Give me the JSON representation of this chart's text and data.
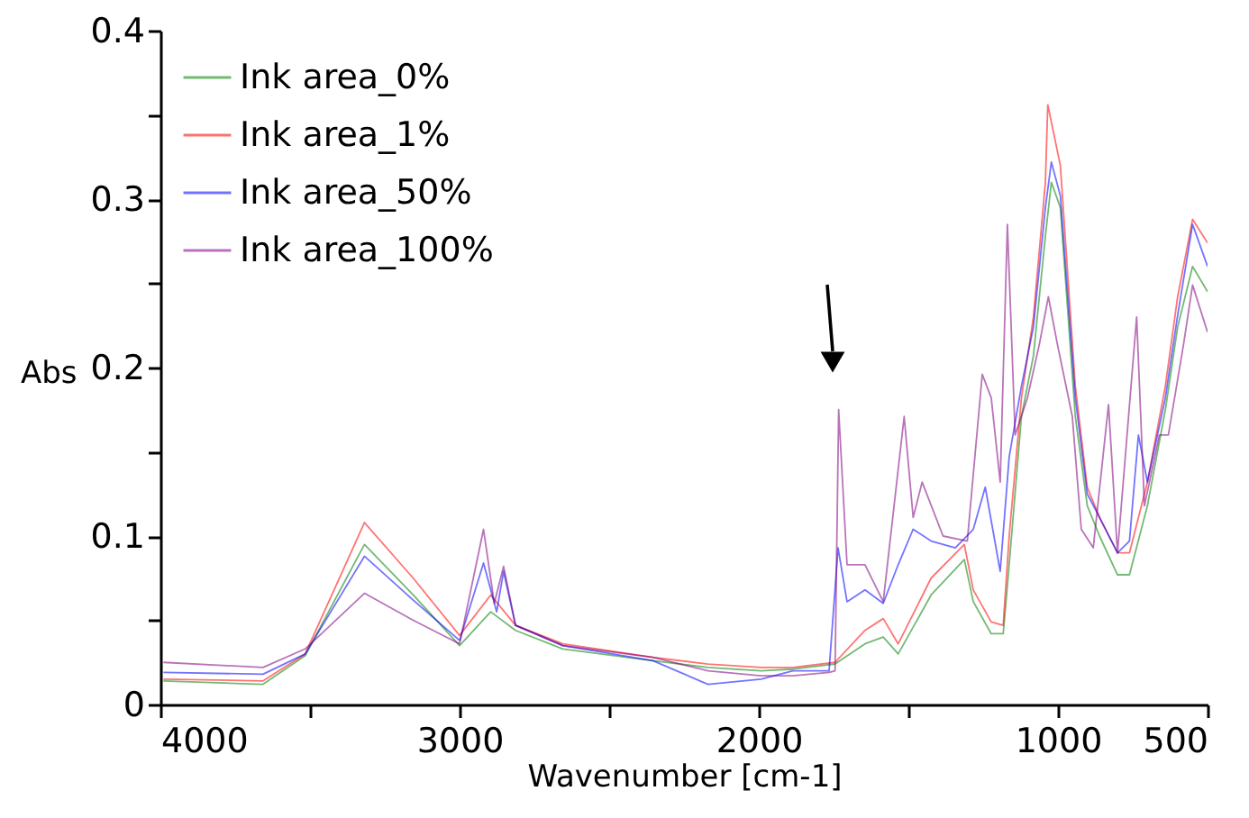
{
  "chart_data": {
    "type": "line",
    "xlabel": "Wavenumber [cm-1]",
    "ylabel": "Abs",
    "xlim": [
      4000,
      500
    ],
    "ylim": [
      0,
      0.4
    ],
    "xticks": [
      4000,
      {
        "value": 3500,
        "label": null
      },
      3000,
      {
        "value": 2500,
        "label": null
      },
      2000,
      {
        "value": 1500,
        "label": null
      },
      1000,
      500
    ],
    "yticks": [
      0,
      {
        "value": 0.05,
        "label": null
      },
      0.1,
      {
        "value": 0.15,
        "label": null
      },
      0.2,
      {
        "value": 0.25,
        "label": null
      },
      0.3,
      {
        "value": 0.35,
        "label": null
      },
      0.4
    ],
    "grid": false,
    "legend": "top left",
    "line_style": "solid",
    "marker": "none",
    "series": [
      {
        "name": "Ink area_0%",
        "color": "#008000",
        "x": [
          3990,
          3657,
          3516,
          3318,
          3155,
          3000,
          2896,
          2813,
          2655,
          2354,
          2170,
          1992,
          1886,
          1745,
          1645,
          1584,
          1534,
          1424,
          1313,
          1283,
          1223,
          1183,
          1163,
          1122,
          1082,
          1042,
          1022,
          992,
          942,
          902,
          861,
          801,
          761,
          701,
          641,
          600,
          550,
          500
        ],
        "values": [
          0.014,
          0.012,
          0.029,
          0.095,
          0.065,
          0.035,
          0.055,
          0.044,
          0.033,
          0.026,
          0.022,
          0.02,
          0.021,
          0.024,
          0.036,
          0.04,
          0.03,
          0.065,
          0.086,
          0.061,
          0.042,
          0.042,
          0.083,
          0.171,
          0.207,
          0.278,
          0.31,
          0.295,
          0.171,
          0.118,
          0.1,
          0.077,
          0.077,
          0.118,
          0.175,
          0.224,
          0.26,
          0.245
        ]
      },
      {
        "name": "Ink area_1%",
        "color": "#ff0000",
        "x": [
          3990,
          3657,
          3516,
          3318,
          3155,
          3000,
          2896,
          2813,
          2655,
          2354,
          2170,
          1992,
          1886,
          1745,
          1645,
          1584,
          1534,
          1424,
          1313,
          1283,
          1223,
          1183,
          1163,
          1122,
          1082,
          1042,
          1034,
          992,
          942,
          902,
          861,
          801,
          761,
          701,
          641,
          600,
          550,
          500
        ],
        "values": [
          0.015,
          0.014,
          0.03,
          0.108,
          0.075,
          0.041,
          0.065,
          0.047,
          0.036,
          0.028,
          0.024,
          0.022,
          0.022,
          0.025,
          0.044,
          0.051,
          0.036,
          0.075,
          0.095,
          0.068,
          0.049,
          0.047,
          0.1,
          0.182,
          0.23,
          0.31,
          0.356,
          0.32,
          0.189,
          0.129,
          0.111,
          0.09,
          0.09,
          0.132,
          0.189,
          0.242,
          0.288,
          0.274
        ]
      },
      {
        "name": "Ink area_50%",
        "color": "#0000ff",
        "x": [
          3990,
          3657,
          3516,
          3318,
          3155,
          3000,
          2920,
          2876,
          2853,
          2813,
          2655,
          2354,
          2170,
          1992,
          1886,
          1765,
          1735,
          1705,
          1645,
          1584,
          1534,
          1484,
          1424,
          1343,
          1283,
          1243,
          1193,
          1163,
          1122,
          1082,
          1042,
          1022,
          992,
          942,
          902,
          861,
          801,
          761,
          731,
          701,
          641,
          600,
          550,
          500
        ],
        "values": [
          0.019,
          0.018,
          0.03,
          0.088,
          0.062,
          0.038,
          0.084,
          0.055,
          0.079,
          0.047,
          0.035,
          0.026,
          0.012,
          0.015,
          0.02,
          0.02,
          0.093,
          0.061,
          0.068,
          0.06,
          0.083,
          0.104,
          0.097,
          0.093,
          0.104,
          0.129,
          0.079,
          0.147,
          0.189,
          0.224,
          0.295,
          0.322,
          0.302,
          0.182,
          0.125,
          0.111,
          0.09,
          0.097,
          0.16,
          0.132,
          0.182,
          0.231,
          0.285,
          0.26
        ]
      },
      {
        "name": "Ink area_100%",
        "color": "#800080",
        "x": [
          3990,
          3657,
          3516,
          3318,
          3155,
          3000,
          2920,
          2884,
          2853,
          2813,
          2655,
          2354,
          2170,
          1992,
          1886,
          1765,
          1745,
          1733,
          1705,
          1645,
          1584,
          1514,
          1484,
          1454,
          1384,
          1303,
          1253,
          1223,
          1193,
          1169,
          1143,
          1102,
          1062,
          1032,
          1002,
          952,
          922,
          882,
          831,
          801,
          737,
          711,
          661,
          631,
          580,
          550,
          500
        ],
        "values": [
          0.025,
          0.022,
          0.033,
          0.066,
          0.05,
          0.036,
          0.104,
          0.06,
          0.082,
          0.047,
          0.035,
          0.028,
          0.02,
          0.017,
          0.017,
          0.019,
          0.02,
          0.175,
          0.083,
          0.083,
          0.061,
          0.171,
          0.111,
          0.132,
          0.1,
          0.097,
          0.196,
          0.182,
          0.132,
          0.285,
          0.16,
          0.182,
          0.214,
          0.242,
          0.214,
          0.171,
          0.104,
          0.093,
          0.178,
          0.09,
          0.23,
          0.118,
          0.16,
          0.16,
          0.214,
          0.249,
          0.221
        ]
      }
    ]
  }
}
